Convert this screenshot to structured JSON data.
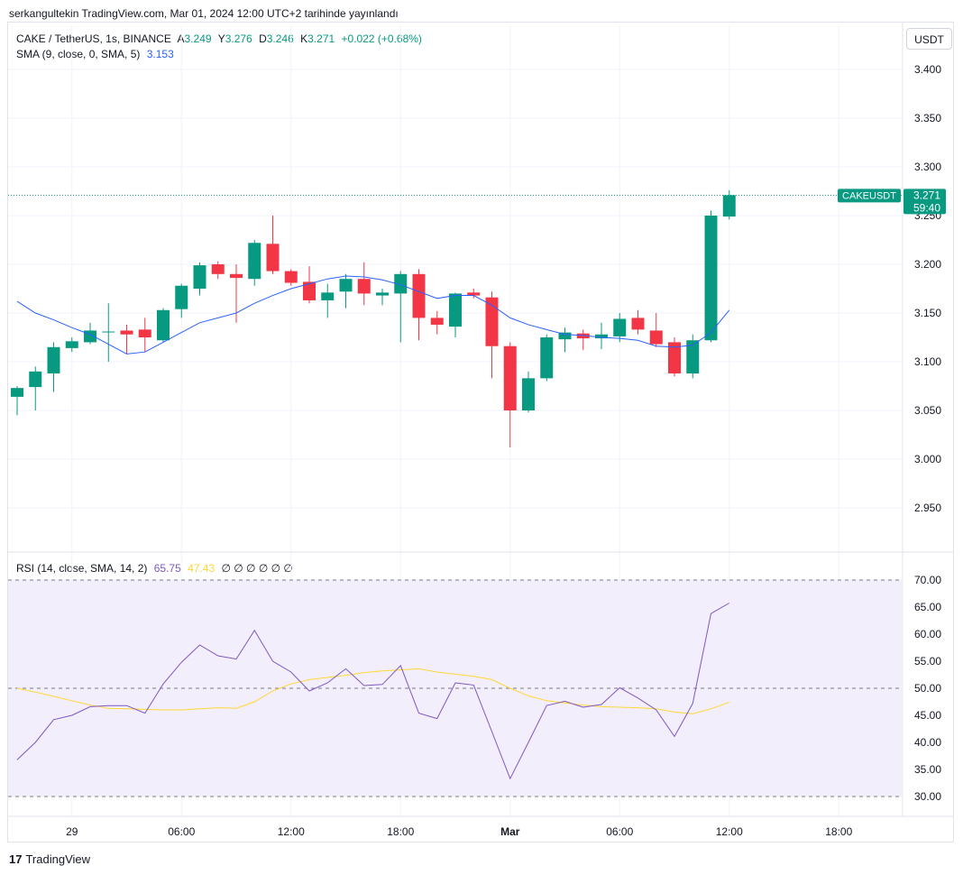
{
  "header": {
    "publisher_line": "serkangultekin TradingView.com, Mar 01, 2024 12:00 UTC+2 tarihinde yayınlandı"
  },
  "symbol_legend": {
    "symbol": "CAKE / TetherUS, 1s, BINANCE",
    "open_label": "A",
    "open_value": "3.249",
    "high_label": "Y",
    "high_value": "3.276",
    "low_label": "D",
    "low_value": "3.246",
    "close_label": "K",
    "close_value": "3.271",
    "change": "+0.022 (+0.68%)"
  },
  "sma_legend": {
    "label": "SMA (9, close, 0, SMA, 5)",
    "value": "3.153"
  },
  "rsi_legend": {
    "label": "RSI (14, close, SMA, 14, 2)",
    "rsi_value": "65.75",
    "sma_value": "47.43",
    "nulls": "∅ ∅ ∅ ∅ ∅ ∅"
  },
  "currency_button": "USDT",
  "price_tag": {
    "symbol": "CAKEUSDT",
    "price": "3.271",
    "countdown": "59:40"
  },
  "footer": {
    "logo_text": "TradingView",
    "logo_mark": "17"
  },
  "colors": {
    "up": "#089981",
    "down": "#f23645",
    "sma": "#2962ff",
    "rsi": "#7e57c2",
    "rsi_ma": "#fdd835",
    "rsi_band": "#f3eefb"
  },
  "chart_data": [
    {
      "type": "candlestick",
      "ylim": [
        2.91,
        3.425
      ],
      "y_ticks": [
        "3.400",
        "3.350",
        "3.300",
        "3.250",
        "3.200",
        "3.150",
        "3.100",
        "3.050",
        "3.000",
        "2.950"
      ],
      "x_ticks": [
        "29",
        "06:00",
        "12:00",
        "18:00",
        "Mar",
        "06:00",
        "12:00",
        "18:00"
      ],
      "candles": [
        {
          "o": 3.064,
          "h": 3.075,
          "l": 3.045,
          "c": 3.073
        },
        {
          "o": 3.074,
          "h": 3.095,
          "l": 3.05,
          "c": 3.09
        },
        {
          "o": 3.088,
          "h": 3.12,
          "l": 3.069,
          "c": 3.115
        },
        {
          "o": 3.114,
          "h": 3.125,
          "l": 3.11,
          "c": 3.121
        },
        {
          "o": 3.12,
          "h": 3.14,
          "l": 3.118,
          "c": 3.132
        },
        {
          "o": 3.131,
          "h": 3.16,
          "l": 3.1,
          "c": 3.131
        },
        {
          "o": 3.132,
          "h": 3.138,
          "l": 3.108,
          "c": 3.128
        },
        {
          "o": 3.133,
          "h": 3.145,
          "l": 3.11,
          "c": 3.125
        },
        {
          "o": 3.122,
          "h": 3.155,
          "l": 3.12,
          "c": 3.153
        },
        {
          "o": 3.154,
          "h": 3.18,
          "l": 3.145,
          "c": 3.178
        },
        {
          "o": 3.175,
          "h": 3.202,
          "l": 3.168,
          "c": 3.199
        },
        {
          "o": 3.2,
          "h": 3.203,
          "l": 3.185,
          "c": 3.19
        },
        {
          "o": 3.19,
          "h": 3.2,
          "l": 3.14,
          "c": 3.186
        },
        {
          "o": 3.185,
          "h": 3.225,
          "l": 3.178,
          "c": 3.222
        },
        {
          "o": 3.221,
          "h": 3.25,
          "l": 3.19,
          "c": 3.193
        },
        {
          "o": 3.193,
          "h": 3.195,
          "l": 3.178,
          "c": 3.181
        },
        {
          "o": 3.182,
          "h": 3.198,
          "l": 3.16,
          "c": 3.163
        },
        {
          "o": 3.163,
          "h": 3.18,
          "l": 3.145,
          "c": 3.171
        },
        {
          "o": 3.172,
          "h": 3.19,
          "l": 3.155,
          "c": 3.185
        },
        {
          "o": 3.185,
          "h": 3.202,
          "l": 3.158,
          "c": 3.17
        },
        {
          "o": 3.168,
          "h": 3.175,
          "l": 3.158,
          "c": 3.171
        },
        {
          "o": 3.17,
          "h": 3.193,
          "l": 3.12,
          "c": 3.19
        },
        {
          "o": 3.19,
          "h": 3.195,
          "l": 3.122,
          "c": 3.145
        },
        {
          "o": 3.145,
          "h": 3.152,
          "l": 3.128,
          "c": 3.138
        },
        {
          "o": 3.136,
          "h": 3.171,
          "l": 3.125,
          "c": 3.17
        },
        {
          "o": 3.171,
          "h": 3.175,
          "l": 3.165,
          "c": 3.168
        },
        {
          "o": 3.166,
          "h": 3.172,
          "l": 3.083,
          "c": 3.116
        },
        {
          "o": 3.116,
          "h": 3.12,
          "l": 3.012,
          "c": 3.05
        },
        {
          "o": 3.05,
          "h": 3.09,
          "l": 3.048,
          "c": 3.083
        },
        {
          "o": 3.083,
          "h": 3.128,
          "l": 3.08,
          "c": 3.125
        },
        {
          "o": 3.123,
          "h": 3.135,
          "l": 3.11,
          "c": 3.13
        },
        {
          "o": 3.129,
          "h": 3.133,
          "l": 3.112,
          "c": 3.124
        },
        {
          "o": 3.124,
          "h": 3.14,
          "l": 3.113,
          "c": 3.128
        },
        {
          "o": 3.126,
          "h": 3.15,
          "l": 3.12,
          "c": 3.144
        },
        {
          "o": 3.145,
          "h": 3.153,
          "l": 3.128,
          "c": 3.133
        },
        {
          "o": 3.132,
          "h": 3.15,
          "l": 3.115,
          "c": 3.118
        },
        {
          "o": 3.12,
          "h": 3.125,
          "l": 3.085,
          "c": 3.088
        },
        {
          "o": 3.088,
          "h": 3.128,
          "l": 3.083,
          "c": 3.122
        },
        {
          "o": 3.122,
          "h": 3.255,
          "l": 3.12,
          "c": 3.25
        },
        {
          "o": 3.249,
          "h": 3.276,
          "l": 3.246,
          "c": 3.271
        }
      ],
      "sma": [
        3.162,
        3.15,
        3.143,
        3.135,
        3.128,
        3.118,
        3.108,
        3.11,
        3.12,
        3.13,
        3.14,
        3.145,
        3.15,
        3.16,
        3.168,
        3.175,
        3.18,
        3.185,
        3.188,
        3.187,
        3.184,
        3.179,
        3.172,
        3.165,
        3.168,
        3.168,
        3.158,
        3.145,
        3.138,
        3.133,
        3.128,
        3.127,
        3.125,
        3.124,
        3.122,
        3.116,
        3.115,
        3.117,
        3.13,
        3.153
      ]
    },
    {
      "type": "line",
      "ylim": [
        30,
        70
      ],
      "y_ticks": [
        "70.00",
        "65.00",
        "60.00",
        "55.00",
        "50.00",
        "45.00",
        "40.00",
        "35.00",
        "30.00"
      ],
      "series": [
        {
          "name": "RSI",
          "values": [
            36.8,
            40.0,
            44.2,
            45.0,
            46.6,
            46.8,
            46.8,
            45.4,
            50.8,
            54.8,
            58.0,
            56.0,
            55.4,
            60.7,
            55.0,
            53.0,
            49.5,
            51.0,
            53.6,
            50.5,
            50.7,
            54.2,
            45.4,
            44.4,
            51.0,
            50.6,
            42.0,
            33.3,
            40.0,
            46.8,
            47.6,
            46.5,
            47.0,
            50.1,
            48.2,
            46.0,
            41.1,
            47.2,
            63.8,
            65.75
          ]
        },
        {
          "name": "RSI-based MA",
          "values": [
            50.0,
            49.3,
            48.5,
            47.7,
            46.9,
            46.3,
            46.2,
            46.1,
            46.0,
            46.0,
            46.2,
            46.4,
            46.3,
            47.5,
            49.5,
            50.8,
            51.6,
            52.0,
            52.4,
            52.9,
            53.2,
            53.4,
            53.6,
            53.0,
            52.6,
            52.2,
            51.6,
            50.0,
            48.6,
            47.7,
            47.3,
            46.9,
            46.6,
            46.5,
            46.4,
            46.2,
            45.6,
            45.3,
            46.2,
            47.43
          ]
        }
      ]
    }
  ]
}
